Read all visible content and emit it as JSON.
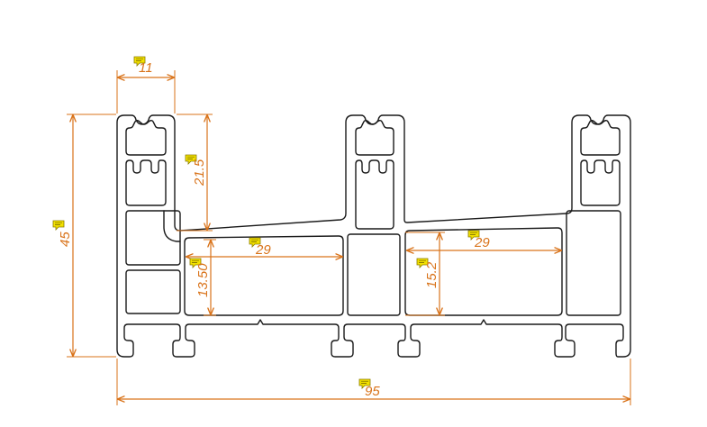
{
  "drawing": {
    "dimensions": {
      "top_width": "11",
      "slot_depth": "21.5",
      "overall_height": "45",
      "chamber_left_width": "29",
      "chamber_left_height": "13.50",
      "chamber_right_width": "29",
      "chamber_right_height": "15.2",
      "overall_width": "95"
    },
    "colors": {
      "outline": "#1a1a1a",
      "dimension": "#d9731a",
      "note_marker": "#f2e000",
      "background": "#ffffff"
    },
    "icons": [
      "note-marker-icon"
    ]
  }
}
